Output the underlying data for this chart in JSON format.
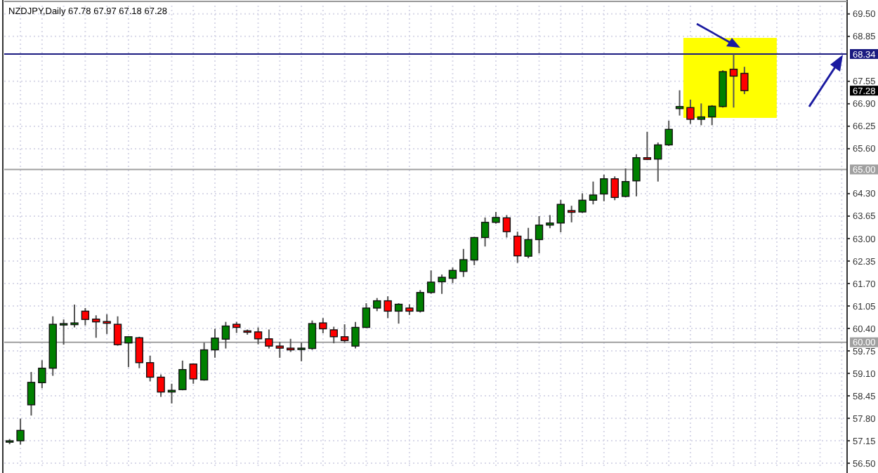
{
  "chart_data": {
    "type": "candlestick",
    "title": "NZDJPY,Daily 67.78 67.97 67.18 67.28",
    "categories": [
      null,
      null,
      null,
      null,
      null,
      null,
      null,
      null,
      null,
      null,
      null,
      null,
      null,
      null,
      null,
      null,
      null,
      null,
      null,
      null,
      null,
      null,
      null,
      null,
      null,
      null,
      null,
      null,
      null,
      null,
      null,
      null,
      null,
      null,
      null,
      null,
      null,
      null,
      null,
      null,
      null,
      null,
      null,
      null,
      null,
      null,
      null,
      null,
      null,
      null,
      null,
      null,
      null,
      null,
      null,
      null,
      null,
      null,
      null,
      null,
      null,
      null,
      null,
      null,
      null,
      null,
      null,
      null,
      null,
      null,
      null,
      null,
      null,
      null,
      null,
      null,
      null,
      null
    ],
    "ohlc": [
      [
        57.12,
        57.2,
        57.05,
        57.15
      ],
      [
        57.15,
        57.79,
        57.04,
        57.45
      ],
      [
        58.19,
        59.14,
        57.88,
        58.84
      ],
      [
        58.83,
        59.48,
        58.67,
        59.25
      ],
      [
        59.25,
        60.75,
        59.03,
        60.52
      ],
      [
        60.52,
        60.66,
        59.93,
        60.54
      ],
      [
        60.51,
        61.09,
        60.43,
        60.56
      ],
      [
        60.9,
        60.99,
        60.49,
        60.66
      ],
      [
        60.67,
        60.78,
        60.13,
        60.59
      ],
      [
        60.6,
        60.81,
        60.24,
        60.55
      ],
      [
        60.52,
        60.75,
        59.9,
        59.93
      ],
      [
        59.98,
        60.17,
        59.28,
        60.16
      ],
      [
        60.13,
        60.16,
        59.25,
        59.41
      ],
      [
        59.41,
        59.61,
        58.87,
        58.99
      ],
      [
        58.99,
        59.07,
        58.42,
        58.56
      ],
      [
        58.56,
        58.8,
        58.23,
        58.61
      ],
      [
        58.63,
        59.47,
        58.61,
        59.21
      ],
      [
        59.37,
        59.39,
        58.8,
        58.94
      ],
      [
        58.91,
        59.99,
        58.89,
        59.78
      ],
      [
        59.78,
        60.39,
        59.55,
        60.12
      ],
      [
        60.09,
        60.59,
        59.82,
        60.47
      ],
      [
        60.52,
        60.59,
        60.27,
        60.43
      ],
      [
        60.33,
        60.37,
        60.22,
        60.32
      ],
      [
        60.3,
        60.43,
        59.94,
        60.1
      ],
      [
        60.1,
        60.37,
        59.82,
        59.89
      ],
      [
        59.89,
        60.01,
        59.55,
        59.83
      ],
      [
        59.83,
        60.1,
        59.72,
        59.78
      ],
      [
        59.82,
        59.99,
        59.45,
        59.83
      ],
      [
        59.82,
        60.63,
        59.78,
        60.54
      ],
      [
        60.56,
        60.7,
        60.26,
        60.39
      ],
      [
        60.36,
        60.45,
        59.97,
        60.16
      ],
      [
        60.16,
        60.52,
        59.99,
        60.05
      ],
      [
        59.89,
        60.59,
        59.82,
        60.43
      ],
      [
        60.43,
        61.13,
        60.41,
        60.99
      ],
      [
        60.99,
        61.28,
        60.9,
        61.2
      ],
      [
        61.2,
        61.33,
        60.7,
        60.9
      ],
      [
        60.9,
        61.13,
        60.54,
        61.1
      ],
      [
        60.99,
        61.1,
        60.79,
        60.9
      ],
      [
        60.9,
        61.51,
        60.86,
        61.44
      ],
      [
        61.44,
        62.08,
        61.4,
        61.74
      ],
      [
        61.75,
        61.96,
        61.4,
        61.88
      ],
      [
        61.85,
        62.16,
        61.71,
        62.08
      ],
      [
        62.05,
        62.7,
        61.89,
        62.39
      ],
      [
        62.38,
        63.05,
        62.23,
        63.03
      ],
      [
        63.03,
        63.61,
        62.77,
        63.47
      ],
      [
        63.47,
        63.77,
        63.43,
        63.61
      ],
      [
        63.6,
        63.68,
        63.03,
        63.2
      ],
      [
        63.07,
        63.2,
        62.3,
        62.5
      ],
      [
        62.49,
        63.31,
        62.43,
        62.97
      ],
      [
        62.97,
        63.65,
        62.57,
        63.39
      ],
      [
        63.39,
        63.68,
        63.3,
        63.45
      ],
      [
        63.45,
        64.12,
        63.18,
        63.99
      ],
      [
        63.81,
        63.95,
        63.47,
        63.76
      ],
      [
        63.77,
        64.31,
        63.74,
        64.11
      ],
      [
        64.11,
        64.65,
        63.99,
        64.26
      ],
      [
        64.29,
        64.85,
        64.08,
        64.73
      ],
      [
        64.73,
        64.8,
        64.11,
        64.19
      ],
      [
        64.22,
        65.03,
        64.19,
        64.65
      ],
      [
        64.67,
        65.44,
        64.22,
        65.34
      ],
      [
        65.34,
        66.09,
        65.27,
        65.29
      ],
      [
        65.3,
        65.78,
        64.65,
        65.71
      ],
      [
        65.71,
        66.41,
        65.68,
        66.16
      ],
      [
        66.76,
        67.29,
        66.56,
        66.82
      ],
      [
        66.79,
        67.02,
        66.32,
        66.45
      ],
      [
        66.45,
        66.91,
        66.28,
        66.52
      ],
      [
        66.52,
        66.86,
        66.28,
        66.83
      ],
      [
        66.82,
        67.87,
        66.79,
        67.83
      ],
      [
        67.9,
        68.34,
        66.79,
        67.7
      ],
      [
        67.78,
        67.97,
        67.18,
        67.28
      ],
      null,
      null,
      null,
      null,
      null,
      null,
      null,
      null,
      null
    ],
    "colors": [
      "#008000",
      "#008000",
      "#008000",
      "#008000",
      "#008000",
      "#008000",
      "#008000",
      "#ff0000",
      "#ff0000",
      "#ff0000",
      "#ff0000",
      "#008000",
      "#ff0000",
      "#ff0000",
      "#ff0000",
      "#008000",
      "#008000",
      "#ff0000",
      "#008000",
      "#008000",
      "#008000",
      "#ff0000",
      "#ff0000",
      "#ff0000",
      "#ff0000",
      "#ff0000",
      "#ff0000",
      "#008000",
      "#008000",
      "#ff0000",
      "#ff0000",
      "#ff0000",
      "#008000",
      "#008000",
      "#008000",
      "#ff0000",
      "#008000",
      "#ff0000",
      "#008000",
      "#008000",
      "#008000",
      "#008000",
      "#008000",
      "#008000",
      "#008000",
      "#008000",
      "#ff0000",
      "#ff0000",
      "#008000",
      "#008000",
      "#008000",
      "#008000",
      "#ff0000",
      "#008000",
      "#008000",
      "#008000",
      "#ff0000",
      "#008000",
      "#008000",
      "#ff0000",
      "#008000",
      "#008000",
      "#008000",
      "#ff0000",
      "#008000",
      "#008000",
      "#008000",
      "#ff0000",
      "#ff0000",
      null,
      null,
      null,
      null,
      null,
      null,
      null,
      null,
      null
    ],
    "ylim": [
      56.38,
      69.74
    ],
    "yticks": [
      {
        "value": 69.5,
        "label": "69.50"
      },
      {
        "value": 68.85,
        "label": "68.85"
      },
      {
        "value": 67.55,
        "label": "67.55"
      },
      {
        "value": 66.9,
        "label": "66.90"
      },
      {
        "value": 66.25,
        "label": "66.25"
      },
      {
        "value": 65.6,
        "label": "65.60"
      },
      {
        "value": 64.3,
        "label": "64.30"
      },
      {
        "value": 63.65,
        "label": "63.65"
      },
      {
        "value": 63,
        "label": "63.00"
      },
      {
        "value": 62.35,
        "label": "62.35"
      },
      {
        "value": 61.7,
        "label": "61.70"
      },
      {
        "value": 61.05,
        "label": "61.05"
      },
      {
        "value": 60.4,
        "label": "60.40"
      },
      {
        "value": 59.75,
        "label": "59.75"
      },
      {
        "value": 59.1,
        "label": "59.10"
      },
      {
        "value": 58.45,
        "label": "58.45"
      },
      {
        "value": 57.8,
        "label": "57.80"
      },
      {
        "value": 57.15,
        "label": "57.15"
      },
      {
        "value": 56.5,
        "label": "56.50"
      }
    ],
    "ref_lines": [
      {
        "axis": "y",
        "value": 68.34,
        "label": "68.34",
        "color": "#1a1a80"
      },
      {
        "axis": "y",
        "value": 65,
        "label": "65.00",
        "color": "#a0a0a0"
      },
      {
        "axis": "y",
        "value": 60,
        "label": "60.00",
        "color": "#a0a0a0"
      }
    ],
    "annotations": [
      {
        "text": "67.28",
        "y": 67.28
      }
    ],
    "grid": true,
    "tick_labels": "y"
  }
}
